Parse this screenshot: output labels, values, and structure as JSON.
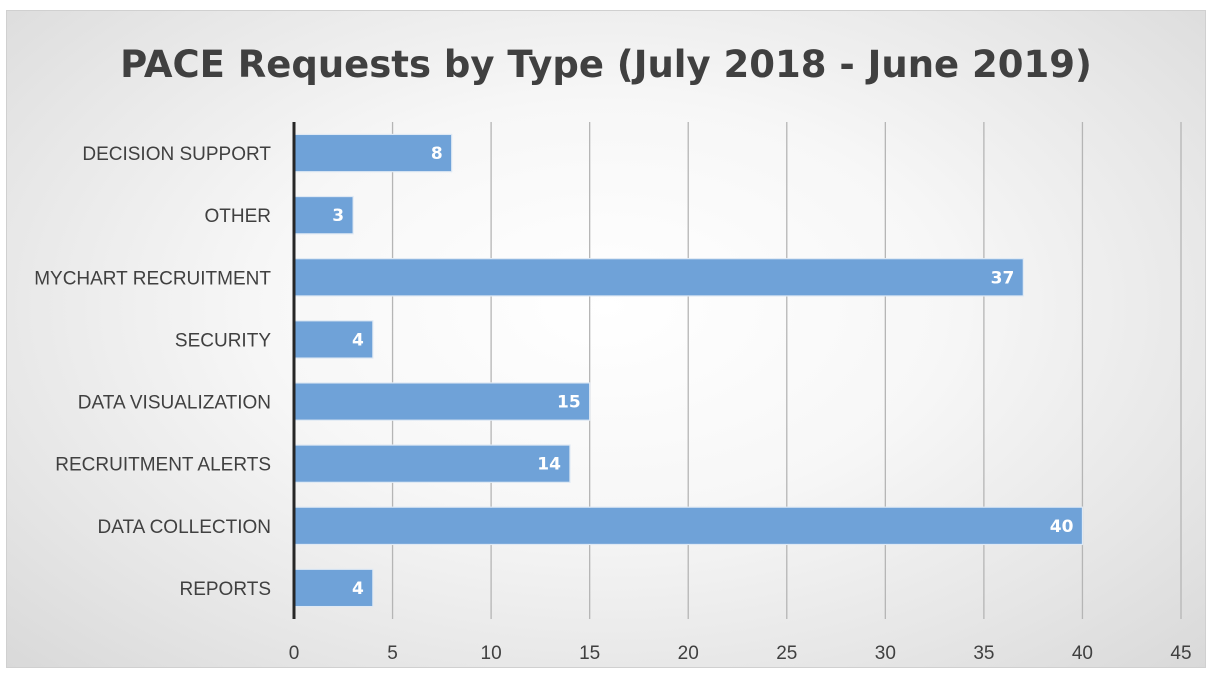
{
  "chart_data": {
    "type": "bar",
    "orientation": "horizontal",
    "title": "PACE Requests by Type (July 2018 - June 2019)",
    "xlabel": "",
    "ylabel": "",
    "categories": [
      "DECISION SUPPORT",
      "OTHER",
      "MYCHART RECRUITMENT",
      "SECURITY",
      "DATA VISUALIZATION",
      "RECRUITMENT ALERTS",
      "DATA COLLECTION",
      "REPORTS"
    ],
    "values": [
      8,
      3,
      37,
      4,
      15,
      14,
      40,
      4
    ],
    "xlim": [
      0,
      45
    ],
    "xticks": [
      0,
      5,
      10,
      15,
      20,
      25,
      30,
      35,
      40,
      45
    ],
    "grid": "vertical",
    "legend": "none",
    "bar_color": "#6fa2d8"
  }
}
